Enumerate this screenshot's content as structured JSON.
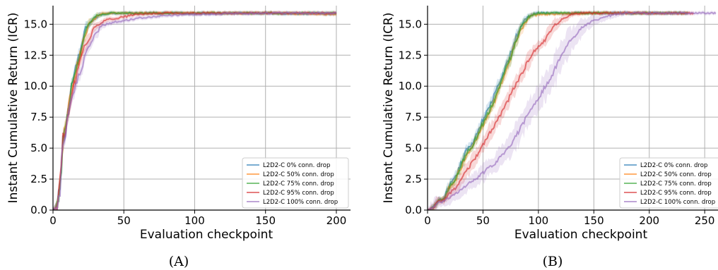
{
  "chart_data": [
    {
      "type": "line",
      "panel_label": "(A)",
      "xlabel": "Evaluation checkpoint",
      "ylabel": "Instant Cumulative Return (ICR)",
      "xlim": [
        0,
        210
      ],
      "ylim": [
        0,
        16.5
      ],
      "xticks": [
        0,
        50,
        100,
        150,
        200
      ],
      "yticks": [
        0.0,
        2.5,
        5.0,
        7.5,
        10.0,
        12.5,
        15.0
      ],
      "ytick_labels": [
        "0.0",
        "2.5",
        "5.0",
        "7.5",
        "10.0",
        "12.5",
        "15.0"
      ],
      "grid": true,
      "legend_position": "lower right",
      "series": [
        {
          "name": "L2D2-C 0% conn. drop",
          "color": "#1f77b4",
          "band": 0.3,
          "points": [
            [
              0,
              0
            ],
            [
              3,
              0.3
            ],
            [
              5,
              2.0
            ],
            [
              7,
              5.5
            ],
            [
              9,
              6.7
            ],
            [
              11,
              8.4
            ],
            [
              13,
              10.0
            ],
            [
              16,
              11.4
            ],
            [
              19,
              12.6
            ],
            [
              22,
              14.3
            ],
            [
              25,
              15.0
            ],
            [
              28,
              15.3
            ],
            [
              31,
              15.6
            ],
            [
              34,
              15.8
            ],
            [
              40,
              15.9
            ],
            [
              50,
              15.9
            ],
            [
              100,
              15.9
            ],
            [
              150,
              15.9
            ],
            [
              200,
              15.8
            ]
          ]
        },
        {
          "name": "L2D2-C 50% conn. drop",
          "color": "#ff7f0e",
          "band": 0.3,
          "points": [
            [
              0,
              0
            ],
            [
              3,
              0.3
            ],
            [
              5,
              2.0
            ],
            [
              7,
              5.4
            ],
            [
              9,
              6.5
            ],
            [
              11,
              8.3
            ],
            [
              13,
              9.7
            ],
            [
              16,
              11.1
            ],
            [
              19,
              12.4
            ],
            [
              22,
              14.0
            ],
            [
              25,
              14.9
            ],
            [
              28,
              15.3
            ],
            [
              31,
              15.6
            ],
            [
              34,
              15.8
            ],
            [
              40,
              15.9
            ],
            [
              50,
              15.9
            ],
            [
              100,
              15.9
            ],
            [
              150,
              15.9
            ],
            [
              200,
              15.8
            ]
          ]
        },
        {
          "name": "L2D2-C 75% conn. drop",
          "color": "#2ca02c",
          "band": 0.3,
          "points": [
            [
              0,
              0
            ],
            [
              3,
              0.3
            ],
            [
              5,
              2.0
            ],
            [
              7,
              5.5
            ],
            [
              9,
              6.6
            ],
            [
              11,
              8.4
            ],
            [
              13,
              10.0
            ],
            [
              16,
              11.3
            ],
            [
              19,
              12.5
            ],
            [
              22,
              14.2
            ],
            [
              25,
              15.0
            ],
            [
              28,
              15.4
            ],
            [
              31,
              15.7
            ],
            [
              34,
              15.8
            ],
            [
              40,
              15.9
            ],
            [
              50,
              15.9
            ],
            [
              100,
              15.9
            ],
            [
              150,
              15.9
            ],
            [
              200,
              15.9
            ]
          ]
        },
        {
          "name": "L2D2-C 95% conn. drop",
          "color": "#d62728",
          "band": 0.4,
          "points": [
            [
              0,
              0
            ],
            [
              3,
              0.3
            ],
            [
              5,
              2.0
            ],
            [
              7,
              5.4
            ],
            [
              9,
              6.4
            ],
            [
              11,
              8.0
            ],
            [
              13,
              9.2
            ],
            [
              16,
              10.5
            ],
            [
              19,
              11.8
            ],
            [
              22,
              13.0
            ],
            [
              25,
              13.8
            ],
            [
              28,
              14.5
            ],
            [
              31,
              14.9
            ],
            [
              35,
              15.2
            ],
            [
              40,
              15.4
            ],
            [
              50,
              15.6
            ],
            [
              60,
              15.8
            ],
            [
              80,
              15.9
            ],
            [
              100,
              15.9
            ],
            [
              150,
              15.9
            ],
            [
              200,
              15.9
            ]
          ]
        },
        {
          "name": "L2D2-C 100% conn. drop",
          "color": "#9467bd",
          "band": 0.4,
          "points": [
            [
              0,
              0
            ],
            [
              3,
              0.3
            ],
            [
              5,
              2.0
            ],
            [
              7,
              5.4
            ],
            [
              9,
              6.3
            ],
            [
              11,
              7.9
            ],
            [
              13,
              8.8
            ],
            [
              16,
              10.0
            ],
            [
              19,
              11.0
            ],
            [
              22,
              12.2
            ],
            [
              25,
              13.0
            ],
            [
              28,
              13.6
            ],
            [
              31,
              14.4
            ],
            [
              35,
              14.9
            ],
            [
              40,
              15.1
            ],
            [
              50,
              15.3
            ],
            [
              60,
              15.5
            ],
            [
              80,
              15.7
            ],
            [
              100,
              15.8
            ],
            [
              150,
              15.9
            ],
            [
              200,
              15.9
            ]
          ]
        }
      ]
    },
    {
      "type": "line",
      "panel_label": "(B)",
      "xlabel": "Evaluation checkpoint",
      "ylabel": "Instant Cumulative Return (ICR)",
      "xlim": [
        0,
        262
      ],
      "ylim": [
        0,
        16.5
      ],
      "xticks": [
        0,
        50,
        100,
        150,
        200,
        250
      ],
      "yticks": [
        0.0,
        2.5,
        5.0,
        7.5,
        10.0,
        12.5,
        15.0
      ],
      "ytick_labels": [
        "0.0",
        "2.5",
        "5.0",
        "7.5",
        "10.0",
        "12.5",
        "15.0"
      ],
      "grid": true,
      "legend_position": "lower right",
      "series": [
        {
          "name": "L2D2-C 0% conn. drop",
          "color": "#1f77b4",
          "band": 0.4,
          "points": [
            [
              0,
              0
            ],
            [
              5,
              0.2
            ],
            [
              10,
              0.8
            ],
            [
              15,
              0.9
            ],
            [
              20,
              2.0
            ],
            [
              25,
              2.6
            ],
            [
              30,
              3.7
            ],
            [
              35,
              4.8
            ],
            [
              40,
              5.3
            ],
            [
              45,
              6.3
            ],
            [
              50,
              7.3
            ],
            [
              55,
              8.2
            ],
            [
              60,
              9.2
            ],
            [
              65,
              10.3
            ],
            [
              70,
              11.4
            ],
            [
              75,
              12.6
            ],
            [
              80,
              14.0
            ],
            [
              85,
              15.0
            ],
            [
              90,
              15.6
            ],
            [
              95,
              15.8
            ],
            [
              100,
              15.9
            ],
            [
              150,
              15.9
            ],
            [
              200,
              15.9
            ],
            [
              235,
              15.9
            ]
          ]
        },
        {
          "name": "L2D2-C 50% conn. drop",
          "color": "#ff7f0e",
          "band": 0.4,
          "points": [
            [
              0,
              0
            ],
            [
              5,
              0.2
            ],
            [
              10,
              0.8
            ],
            [
              15,
              0.9
            ],
            [
              20,
              1.9
            ],
            [
              25,
              2.4
            ],
            [
              30,
              3.4
            ],
            [
              35,
              4.4
            ],
            [
              40,
              5.0
            ],
            [
              45,
              5.9
            ],
            [
              50,
              6.9
            ],
            [
              55,
              7.8
            ],
            [
              60,
              8.7
            ],
            [
              65,
              9.8
            ],
            [
              70,
              10.9
            ],
            [
              75,
              12.2
            ],
            [
              80,
              13.6
            ],
            [
              85,
              14.7
            ],
            [
              90,
              15.4
            ],
            [
              95,
              15.7
            ],
            [
              100,
              15.8
            ],
            [
              150,
              15.9
            ],
            [
              200,
              15.9
            ],
            [
              235,
              15.9
            ]
          ]
        },
        {
          "name": "L2D2-C 75% conn. drop",
          "color": "#2ca02c",
          "band": 0.4,
          "points": [
            [
              0,
              0
            ],
            [
              5,
              0.2
            ],
            [
              10,
              0.8
            ],
            [
              15,
              0.9
            ],
            [
              20,
              1.9
            ],
            [
              25,
              2.5
            ],
            [
              30,
              3.5
            ],
            [
              35,
              4.6
            ],
            [
              40,
              5.1
            ],
            [
              45,
              6.1
            ],
            [
              50,
              7.0
            ],
            [
              55,
              7.9
            ],
            [
              60,
              8.9
            ],
            [
              65,
              10.0
            ],
            [
              70,
              11.2
            ],
            [
              75,
              12.4
            ],
            [
              80,
              13.8
            ],
            [
              85,
              14.9
            ],
            [
              90,
              15.5
            ],
            [
              95,
              15.8
            ],
            [
              100,
              15.9
            ],
            [
              150,
              15.9
            ],
            [
              200,
              15.9
            ],
            [
              235,
              15.9
            ]
          ]
        },
        {
          "name": "L2D2-C 95% conn. drop",
          "color": "#d62728",
          "band": 0.9,
          "points": [
            [
              0,
              0
            ],
            [
              5,
              0.2
            ],
            [
              10,
              0.7
            ],
            [
              15,
              0.8
            ],
            [
              20,
              1.3
            ],
            [
              25,
              1.8
            ],
            [
              30,
              2.4
            ],
            [
              35,
              3.1
            ],
            [
              40,
              3.8
            ],
            [
              45,
              4.5
            ],
            [
              50,
              5.2
            ],
            [
              55,
              6.0
            ],
            [
              60,
              6.8
            ],
            [
              65,
              7.6
            ],
            [
              70,
              8.4
            ],
            [
              75,
              9.3
            ],
            [
              80,
              10.2
            ],
            [
              85,
              11.0
            ],
            [
              90,
              11.9
            ],
            [
              95,
              12.7
            ],
            [
              100,
              13.2
            ],
            [
              105,
              13.6
            ],
            [
              110,
              14.3
            ],
            [
              115,
              14.9
            ],
            [
              120,
              15.3
            ],
            [
              125,
              15.6
            ],
            [
              130,
              15.8
            ],
            [
              140,
              15.9
            ],
            [
              150,
              15.9
            ],
            [
              200,
              15.9
            ],
            [
              240,
              15.9
            ]
          ]
        },
        {
          "name": "L2D2-C 100% conn. drop",
          "color": "#9467bd",
          "band": 1.8,
          "points": [
            [
              0,
              0
            ],
            [
              5,
              0.2
            ],
            [
              10,
              0.6
            ],
            [
              15,
              0.7
            ],
            [
              20,
              1.0
            ],
            [
              25,
              1.3
            ],
            [
              30,
              1.6
            ],
            [
              35,
              2.0
            ],
            [
              40,
              2.3
            ],
            [
              45,
              2.6
            ],
            [
              50,
              3.0
            ],
            [
              55,
              3.4
            ],
            [
              60,
              3.7
            ],
            [
              65,
              4.2
            ],
            [
              70,
              4.7
            ],
            [
              75,
              5.3
            ],
            [
              80,
              6.0
            ],
            [
              85,
              6.8
            ],
            [
              90,
              7.6
            ],
            [
              95,
              8.3
            ],
            [
              100,
              9.0
            ],
            [
              105,
              9.8
            ],
            [
              110,
              10.5
            ],
            [
              115,
              11.4
            ],
            [
              120,
              12.3
            ],
            [
              125,
              13.1
            ],
            [
              130,
              13.8
            ],
            [
              140,
              14.8
            ],
            [
              150,
              15.3
            ],
            [
              160,
              15.6
            ],
            [
              170,
              15.8
            ],
            [
              180,
              15.9
            ],
            [
              200,
              15.9
            ],
            [
              230,
              15.9
            ],
            [
              260,
              15.9
            ]
          ]
        }
      ]
    }
  ]
}
